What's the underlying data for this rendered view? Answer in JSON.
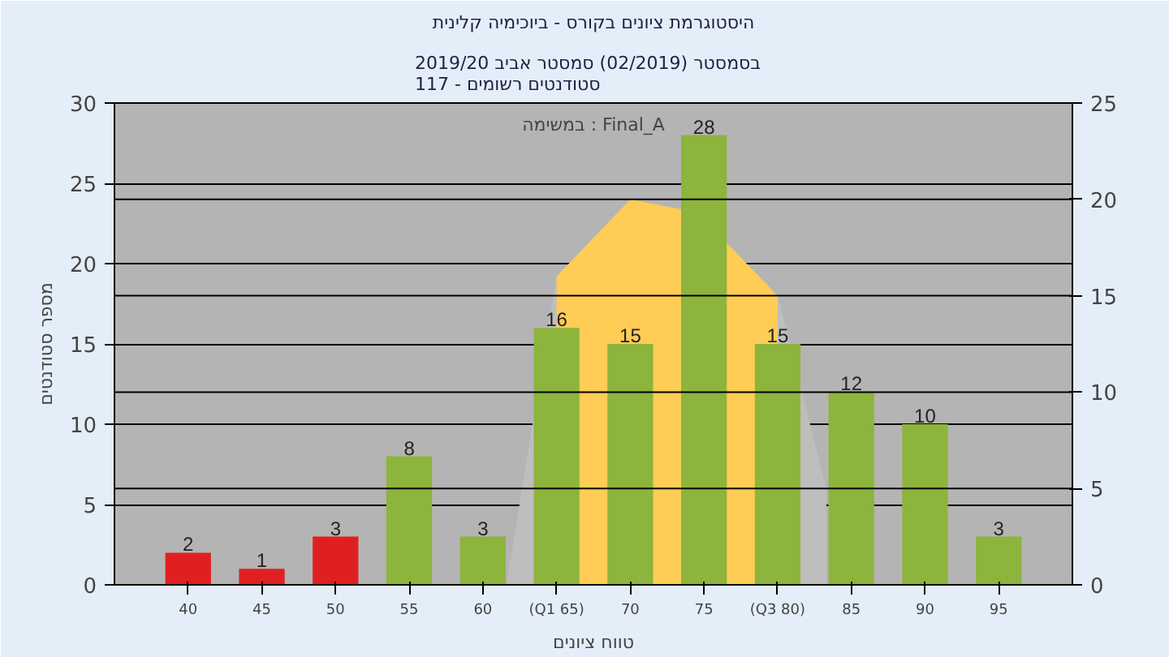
{
  "chart_data": {
    "type": "bar",
    "title": "היסטוגרמת ציונים בקורס - ביוכימיה קלינית",
    "subtitle": "בסמסטר  (02/2019)  סמסטר אביב 2019/20\nסטודנטים רשומים - 117",
    "xlabel": "טווח ציונים",
    "ylabel": "מספר סטודנטים",
    "annotations": [
      "במשימה : Final_A"
    ],
    "x": [
      40,
      45,
      50,
      55,
      60,
      65,
      70,
      75,
      80,
      85,
      90,
      95
    ],
    "xlim": [
      35,
      100
    ],
    "xticks": [
      40,
      45,
      50,
      55,
      60,
      {
        "value": 65,
        "label": "(Q1 65)"
      },
      70,
      75,
      {
        "value": 80,
        "label": "(Q3 80)"
      },
      85,
      90,
      95
    ],
    "ylim": [
      0,
      30
    ],
    "yticks": [
      0,
      5,
      10,
      15,
      20,
      25,
      30
    ],
    "y2lim": [
      0,
      25
    ],
    "y2ticks": [
      0,
      5,
      10,
      15,
      20,
      25
    ],
    "grid": "y",
    "series": [
      {
        "type": "area",
        "axis": "y2",
        "color": "#bebebe",
        "x": [
          61.6,
          65,
          80,
          83.3
        ],
        "values": [
          0,
          16,
          15,
          5
        ]
      },
      {
        "type": "area",
        "axis": "y2",
        "color": "#ffcc55",
        "x": [
          65,
          70,
          73.4,
          76.6,
          80
        ],
        "values": [
          16,
          20,
          19.5,
          17.7,
          15
        ]
      },
      {
        "value_labels": [
          "2",
          "1",
          "3",
          "8",
          "3",
          "16",
          "15",
          "28",
          "15",
          "12",
          "10",
          "3"
        ],
        "colors": [
          "#e02020",
          "#e02020",
          "#e02020",
          "#8db43c",
          "#8db43c",
          "#8db43c",
          "#8db43c",
          "#8db43c",
          "#8db43c",
          "#8db43c",
          "#8db43c",
          "#8db43c"
        ],
        "values": [
          2,
          1,
          3,
          8,
          3,
          16,
          15,
          28,
          15,
          12,
          10,
          3
        ]
      }
    ]
  }
}
